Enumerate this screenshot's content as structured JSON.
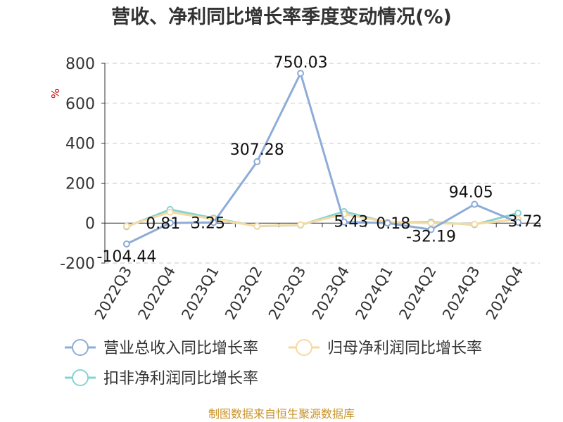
{
  "chart_data": {
    "type": "line",
    "title": "营收、净利同比增长率季度变动情况(%)",
    "ylabel": "%",
    "categories": [
      "2022Q3",
      "2022Q4",
      "2023Q1",
      "2023Q2",
      "2023Q3",
      "2023Q4",
      "2024Q1",
      "2024Q2",
      "2024Q3",
      "2024Q4"
    ],
    "ylim": [
      -200,
      800
    ],
    "yticks": [
      800,
      600,
      400,
      200,
      0,
      -200
    ],
    "grid": true,
    "legend_position": "bottom",
    "series": [
      {
        "name": "营业总收入同比增长率",
        "color": "#8eacd8",
        "values": [
          -104.44,
          0.81,
          3.25,
          307.28,
          750.03,
          5.43,
          0.18,
          -32.19,
          94.05,
          3.72
        ],
        "labels": [
          "-104.44",
          "0.81",
          "3.25",
          "307.28",
          "750.03",
          "5.43",
          "0.18",
          "-32.19",
          "94.05",
          "3.72"
        ]
      },
      {
        "name": "归母净利润同比增长率",
        "color": "#f6d9a0",
        "values": [
          -15,
          55,
          20,
          -15,
          -8,
          45,
          5,
          0,
          -5,
          20
        ]
      },
      {
        "name": "扣非净利润同比增长率",
        "color": "#86d3d3",
        "values": [
          -18,
          68,
          25,
          -16,
          -10,
          58,
          3,
          5,
          -8,
          50
        ]
      }
    ]
  },
  "source": "制图数据来自恒生聚源数据库"
}
